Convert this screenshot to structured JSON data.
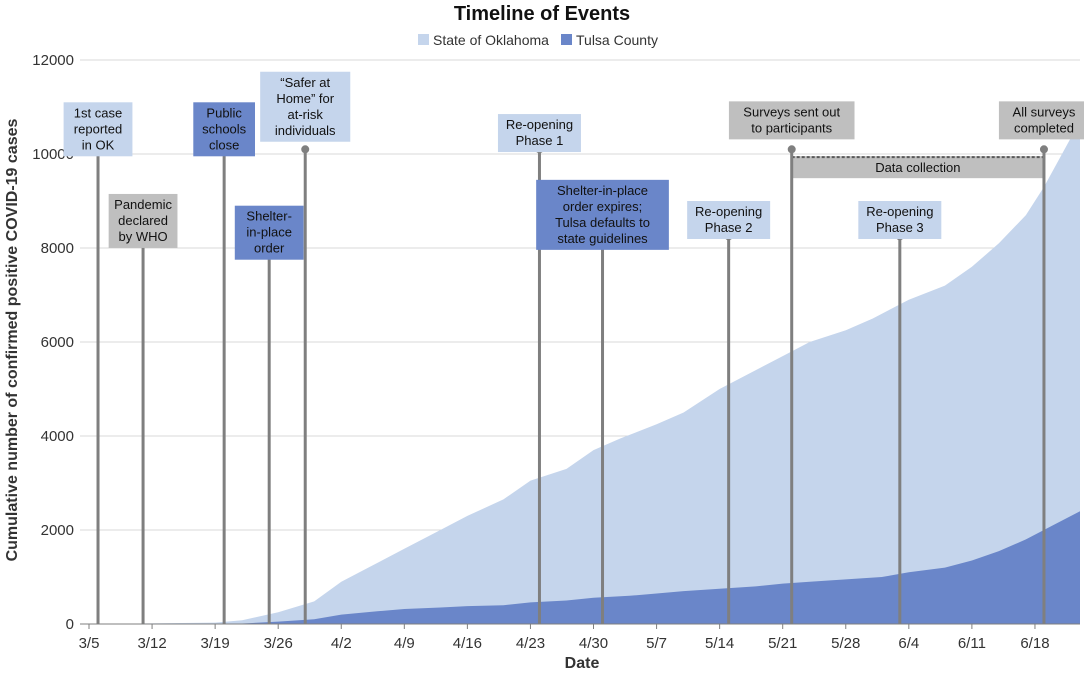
{
  "chart_data": {
    "type": "area",
    "title": "Timeline of Events",
    "xlabel": "Date",
    "ylabel": "Cumulative number of confirmed positive COVID-19 cases",
    "ylim": [
      0,
      12000
    ],
    "yticks": [
      0,
      2000,
      4000,
      6000,
      8000,
      10000,
      12000
    ],
    "xticks": [
      "3/5",
      "3/12",
      "3/19",
      "3/26",
      "4/2",
      "4/9",
      "4/16",
      "4/23",
      "4/30",
      "5/7",
      "5/14",
      "5/21",
      "5/28",
      "6/4",
      "6/11",
      "6/18"
    ],
    "legend_position": "top-center",
    "grid": "horizontal",
    "series": [
      {
        "name": "State of Oklahoma",
        "color": "#c5d5ec",
        "points": [
          [
            "3/5",
            0
          ],
          [
            "3/19",
            30
          ],
          [
            "3/22",
            80
          ],
          [
            "3/26",
            250
          ],
          [
            "3/30",
            480
          ],
          [
            "4/2",
            900
          ],
          [
            "4/5",
            1200
          ],
          [
            "4/9",
            1600
          ],
          [
            "4/13",
            2000
          ],
          [
            "4/16",
            2300
          ],
          [
            "4/20",
            2650
          ],
          [
            "4/23",
            3050
          ],
          [
            "4/27",
            3300
          ],
          [
            "4/30",
            3700
          ],
          [
            "5/3",
            3950
          ],
          [
            "5/7",
            4250
          ],
          [
            "5/10",
            4500
          ],
          [
            "5/14",
            5000
          ],
          [
            "5/17",
            5300
          ],
          [
            "5/21",
            5700
          ],
          [
            "5/24",
            6000
          ],
          [
            "5/28",
            6250
          ],
          [
            "5/31",
            6500
          ],
          [
            "6/4",
            6900
          ],
          [
            "6/8",
            7200
          ],
          [
            "6/11",
            7600
          ],
          [
            "6/14",
            8100
          ],
          [
            "6/17",
            8700
          ],
          [
            "6/19",
            9300
          ],
          [
            "6/21",
            10000
          ],
          [
            "6/23",
            10700
          ]
        ]
      },
      {
        "name": "Tulsa County",
        "color": "#6a86c9",
        "points": [
          [
            "3/5",
            0
          ],
          [
            "3/22",
            10
          ],
          [
            "3/26",
            50
          ],
          [
            "3/30",
            100
          ],
          [
            "4/2",
            200
          ],
          [
            "4/6",
            270
          ],
          [
            "4/9",
            320
          ],
          [
            "4/13",
            350
          ],
          [
            "4/16",
            380
          ],
          [
            "4/20",
            400
          ],
          [
            "4/23",
            460
          ],
          [
            "4/27",
            500
          ],
          [
            "4/30",
            560
          ],
          [
            "5/4",
            600
          ],
          [
            "5/7",
            650
          ],
          [
            "5/10",
            700
          ],
          [
            "5/14",
            750
          ],
          [
            "5/18",
            800
          ],
          [
            "5/21",
            860
          ],
          [
            "5/24",
            900
          ],
          [
            "5/28",
            950
          ],
          [
            "6/1",
            1000
          ],
          [
            "6/4",
            1100
          ],
          [
            "6/8",
            1200
          ],
          [
            "6/11",
            1350
          ],
          [
            "6/14",
            1550
          ],
          [
            "6/17",
            1800
          ],
          [
            "6/20",
            2100
          ],
          [
            "6/23",
            2400
          ]
        ]
      }
    ],
    "events": [
      {
        "date": "3/6",
        "y": 10100,
        "label_top": 11100,
        "lines": [
          "1st case",
          "reported",
          "in OK"
        ],
        "style": "light"
      },
      {
        "date": "3/11",
        "y": 8200,
        "label_top": 9150,
        "lines": [
          "Pandemic",
          "declared",
          "by WHO"
        ],
        "style": "gray"
      },
      {
        "date": "3/20",
        "y": 10100,
        "label_top": 11100,
        "lines": [
          "Public",
          "schools",
          "close"
        ],
        "style": "dark"
      },
      {
        "date": "3/25",
        "y": 8200,
        "label_top": 8900,
        "lines": [
          "Shelter-",
          "in-place",
          "order"
        ],
        "style": "dark"
      },
      {
        "date": "3/29",
        "y": 10100,
        "label_top": 11750,
        "lines": [
          "“Safer at",
          "Home” for",
          "at-risk",
          "individuals"
        ],
        "style": "light"
      },
      {
        "date": "4/24",
        "y": 10100,
        "label_top": 10850,
        "lines": [
          "Re-opening",
          "Phase 1"
        ],
        "style": "light"
      },
      {
        "date": "5/1",
        "y": 8200,
        "label_top": 9450,
        "lines": [
          "Shelter-in-place",
          "order expires;",
          "Tulsa defaults to",
          "state guidelines"
        ],
        "style": "dark"
      },
      {
        "date": "5/15",
        "y": 8250,
        "label_top": 9000,
        "lines": [
          "Re-opening",
          "Phase 2"
        ],
        "style": "light"
      },
      {
        "date": "5/22",
        "y": 10100,
        "label_top": 11120,
        "lines": [
          "Surveys sent out",
          "to participants"
        ],
        "style": "gray"
      },
      {
        "date": "6/3",
        "y": 8250,
        "label_top": 9000,
        "lines": [
          "Re-opening",
          "Phase 3"
        ],
        "style": "light"
      },
      {
        "date": "6/19",
        "y": 10100,
        "label_top": 11120,
        "lines": [
          "All surveys",
          "completed"
        ],
        "style": "gray"
      }
    ],
    "data_collection": {
      "label": "Data collection",
      "start": "5/22",
      "end": "6/19"
    }
  }
}
